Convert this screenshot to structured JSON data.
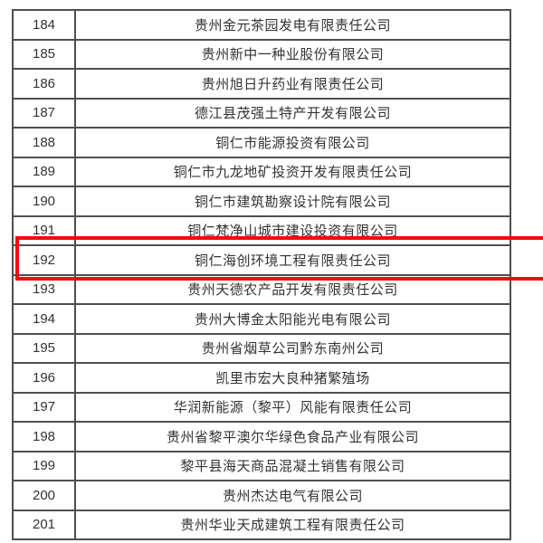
{
  "table": {
    "rows": [
      {
        "no": "184",
        "company": "贵州金元茶园发电有限责任公司",
        "highlighted": false
      },
      {
        "no": "185",
        "company": "贵州新中一种业股份有限公司",
        "highlighted": false
      },
      {
        "no": "186",
        "company": "贵州旭日升药业有限责任公司",
        "highlighted": false
      },
      {
        "no": "187",
        "company": "德江县茂强土特产开发有限公司",
        "highlighted": false
      },
      {
        "no": "188",
        "company": "铜仁市能源投资有限公司",
        "highlighted": false
      },
      {
        "no": "189",
        "company": "铜仁市九龙地矿投资开发有限责任公司",
        "highlighted": false
      },
      {
        "no": "190",
        "company": "铜仁市建筑勘察设计院有限公司",
        "highlighted": false
      },
      {
        "no": "191",
        "company": "铜仁梵净山城市建设投资有限公司",
        "highlighted": false
      },
      {
        "no": "192",
        "company": "铜仁海创环境工程有限责任公司",
        "highlighted": true
      },
      {
        "no": "193",
        "company": "贵州天德农产品开发有限责任公司",
        "highlighted": false
      },
      {
        "no": "194",
        "company": "贵州大博金太阳能光电有限公司",
        "highlighted": false
      },
      {
        "no": "195",
        "company": "贵州省烟草公司黔东南州公司",
        "highlighted": false
      },
      {
        "no": "196",
        "company": "凯里市宏大良种猪繁殖场",
        "highlighted": false
      },
      {
        "no": "197",
        "company": "华润新能源（黎平）风能有限责任公司",
        "highlighted": false
      },
      {
        "no": "198",
        "company": "贵州省黎平澳尔华绿色食品产业有限公司",
        "highlighted": false
      },
      {
        "no": "199",
        "company": "黎平县海天商品混凝土销售有限公司",
        "highlighted": false
      },
      {
        "no": "200",
        "company": "贵州杰达电气有限公司",
        "highlighted": false
      },
      {
        "no": "201",
        "company": "贵州华业天成建筑工程有限责任公司",
        "highlighted": false
      }
    ]
  },
  "highlight": {
    "highlighted_row_no": "192",
    "color": "#f20b0b"
  },
  "colors": {
    "border": "#4f4f4f",
    "text": "#333333",
    "background": "#ffffff"
  }
}
